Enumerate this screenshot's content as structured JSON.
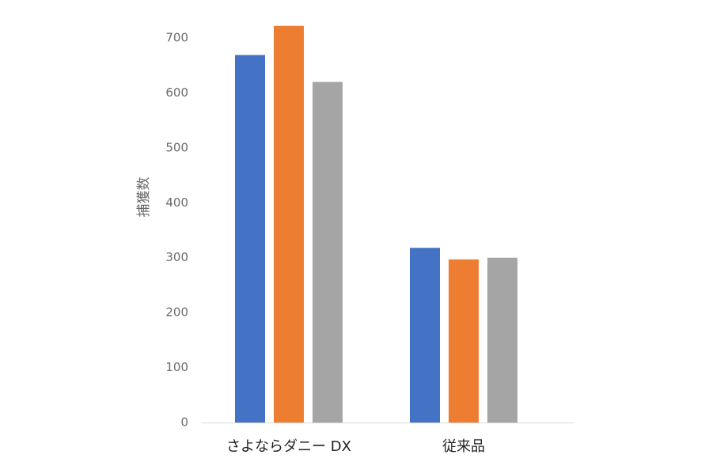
{
  "chart_data": {
    "type": "bar",
    "title": "",
    "xlabel": "",
    "ylabel": "捕獲数",
    "categories": [
      "さよならダニー DX",
      "従来品"
    ],
    "series": [
      {
        "values": [
          669,
          318
        ],
        "color": "#4472C4"
      },
      {
        "values": [
          722,
          297
        ],
        "color": "#ED7D31"
      },
      {
        "values": [
          620,
          300
        ],
        "color": "#A5A5A5"
      }
    ],
    "ylim": [
      0,
      700
    ],
    "yticks": [
      0,
      100,
      200,
      300,
      400,
      500,
      600,
      700
    ],
    "grid": false,
    "legend": "none",
    "colors": {
      "axis_line": "#d9d9d9",
      "tick_text": "#6b6b6b",
      "category_text": "#222222"
    }
  }
}
